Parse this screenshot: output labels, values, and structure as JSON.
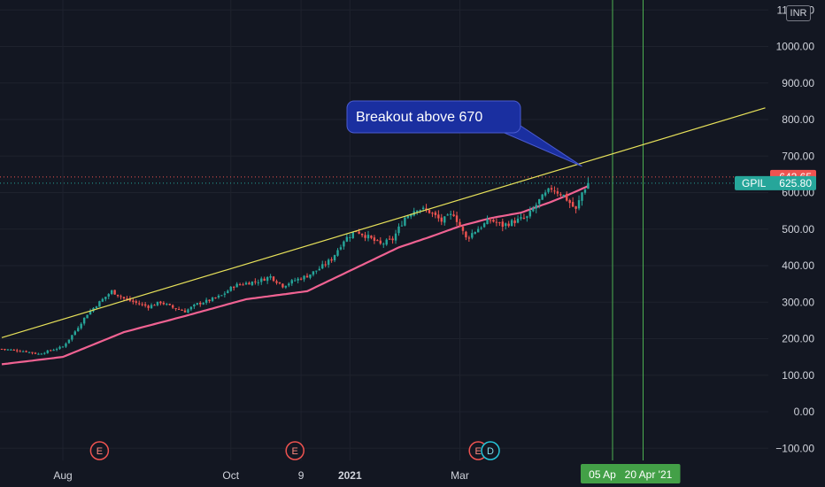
{
  "currency": "INR",
  "symbol": "GPIL",
  "annotation": "Breakout above 670",
  "price_tags": {
    "high_line": "642.65",
    "last": "625.80"
  },
  "date_badges": [
    "05 Apr '21",
    "20 Apr '21"
  ],
  "earnings_label": "E",
  "dividend_label": "D",
  "colors": {
    "background": "#131722",
    "up": "#26a69a",
    "down": "#ef5350",
    "moving_average": "#f06292",
    "trendline": "#e8e25a",
    "vertical_lines": "#4caf50",
    "callout": "#1a2fa0"
  },
  "chart_data": {
    "type": "candlestick",
    "y_axis": {
      "ylim": [
        -120,
        1120
      ],
      "tick_labels": [
        "1100.00",
        "1000.00",
        "900.00",
        "800.00",
        "700.00",
        "600.00",
        "500.00",
        "400.00",
        "300.00",
        "200.00",
        "100.00",
        "0.00",
        "−100.00"
      ],
      "tick_values": [
        1100,
        1000,
        900,
        800,
        700,
        600,
        500,
        400,
        300,
        200,
        100,
        0,
        -100
      ]
    },
    "x_axis": {
      "tick_labels": [
        "Aug",
        "Oct",
        "9",
        "2021",
        "Mar"
      ],
      "tick_bars": [
        20,
        75,
        98,
        114,
        150
      ]
    },
    "price_keypoints": [
      [
        0,
        172
      ],
      [
        8,
        165
      ],
      [
        12,
        158
      ],
      [
        16,
        168
      ],
      [
        20,
        178
      ],
      [
        24,
        220
      ],
      [
        28,
        268
      ],
      [
        32,
        300
      ],
      [
        36,
        330
      ],
      [
        40,
        310
      ],
      [
        44,
        298
      ],
      [
        48,
        288
      ],
      [
        52,
        300
      ],
      [
        56,
        285
      ],
      [
        60,
        275
      ],
      [
        64,
        295
      ],
      [
        68,
        305
      ],
      [
        72,
        318
      ],
      [
        76,
        345
      ],
      [
        80,
        352
      ],
      [
        84,
        358
      ],
      [
        88,
        370
      ],
      [
        92,
        345
      ],
      [
        96,
        360
      ],
      [
        100,
        372
      ],
      [
        104,
        392
      ],
      [
        108,
        418
      ],
      [
        112,
        470
      ],
      [
        116,
        496
      ],
      [
        120,
        478
      ],
      [
        124,
        458
      ],
      [
        128,
        472
      ],
      [
        132,
        532
      ],
      [
        136,
        558
      ],
      [
        140,
        548
      ],
      [
        144,
        522
      ],
      [
        148,
        542
      ],
      [
        152,
        475
      ],
      [
        156,
        502
      ],
      [
        160,
        525
      ],
      [
        164,
        510
      ],
      [
        168,
        522
      ],
      [
        172,
        532
      ],
      [
        176,
        578
      ],
      [
        180,
        612
      ],
      [
        184,
        592
      ],
      [
        188,
        552
      ],
      [
        190,
        600
      ],
      [
        192,
        626
      ]
    ],
    "moving_average_keypoints": [
      [
        0,
        130
      ],
      [
        20,
        150
      ],
      [
        40,
        218
      ],
      [
        60,
        262
      ],
      [
        80,
        308
      ],
      [
        100,
        330
      ],
      [
        110,
        370
      ],
      [
        120,
        410
      ],
      [
        130,
        450
      ],
      [
        140,
        478
      ],
      [
        150,
        508
      ],
      [
        160,
        530
      ],
      [
        170,
        545
      ],
      [
        180,
        575
      ],
      [
        185,
        592
      ],
      [
        192,
        618
      ]
    ],
    "trendline": {
      "start": [
        0,
        203
      ],
      "end": [
        250,
        832
      ]
    },
    "vertical_line_bars": [
      200,
      210
    ],
    "earnings_bars": [
      32,
      96,
      156
    ],
    "dividend_bars": [
      160
    ]
  }
}
